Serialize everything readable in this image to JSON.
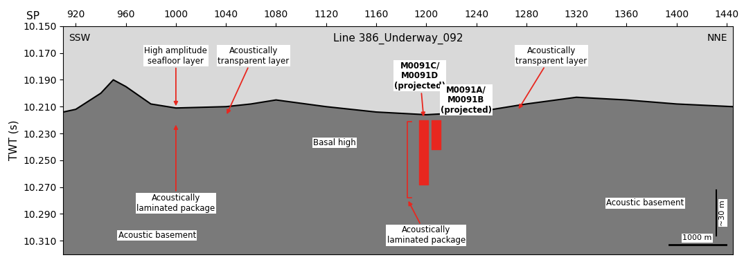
{
  "chart_data": {
    "type": "seismic_section",
    "title": "Line 386_Underway_092",
    "xlabel": "SP",
    "ylabel": "TWT (s)",
    "corner_left": "SSW",
    "corner_right": "NNE",
    "xlim": [
      910,
      1445
    ],
    "xticks": [
      920,
      960,
      1000,
      1040,
      1080,
      1120,
      1160,
      1200,
      1240,
      1280,
      1320,
      1360,
      1400,
      1440
    ],
    "ylim": [
      10.32,
      10.15
    ],
    "yticks": [
      {
        "value": 10.15,
        "label": "10.150"
      },
      {
        "value": 10.17,
        "label": "10.170"
      },
      {
        "value": 10.19,
        "label": "10.190"
      },
      {
        "value": 10.21,
        "label": "10.210"
      },
      {
        "value": 10.23,
        "label": "10.230"
      },
      {
        "value": 10.25,
        "label": "10.250"
      },
      {
        "value": 10.27,
        "label": "10.270"
      },
      {
        "value": 10.29,
        "label": "10.290"
      },
      {
        "value": 10.31,
        "label": "10.310"
      }
    ],
    "seafloor": {
      "x": [
        910,
        920,
        940,
        950,
        960,
        980,
        1000,
        1040,
        1060,
        1080,
        1120,
        1160,
        1200,
        1240,
        1280,
        1320,
        1360,
        1400,
        1445
      ],
      "values": [
        10.214,
        10.212,
        10.2,
        10.19,
        10.195,
        10.208,
        10.211,
        10.21,
        10.208,
        10.205,
        10.21,
        10.214,
        10.216,
        10.214,
        10.208,
        10.203,
        10.205,
        10.208,
        10.21
      ]
    },
    "cores": [
      {
        "x": 1198,
        "top": 10.22,
        "bottom": 10.268
      },
      {
        "x": 1208,
        "top": 10.22,
        "bottom": 10.242
      }
    ],
    "bracket": {
      "x": 1185,
      "top": 10.221,
      "bottom": 10.278
    },
    "annotations": [
      {
        "text": "High amplitude\nseafloor layer",
        "x": 1000,
        "y": 10.211
      },
      {
        "text": "Acoustically\ntransparent layer",
        "x": 1040,
        "y": 10.217
      },
      {
        "text": "Acoustically\nlaminated package",
        "x": 1000,
        "y": 10.222
      },
      {
        "text": "Basal high"
      },
      {
        "text": "M0091C/\nM0091D\n(projected)",
        "x": 1198,
        "y": 10.219
      },
      {
        "text": "M0091A/\nM0091B\n(projected)"
      },
      {
        "text": "Acoustically\ntransparent layer",
        "x": 1273,
        "y": 10.213
      },
      {
        "text": "Acoustic basement"
      },
      {
        "text": "Acoustic basement"
      },
      {
        "text": "Acoustically\nlaminated package",
        "x": 1185,
        "y": 10.279
      }
    ],
    "scale_vertical": "~30 m",
    "scale_horizontal": "1000 m",
    "color": "#e8271f"
  }
}
